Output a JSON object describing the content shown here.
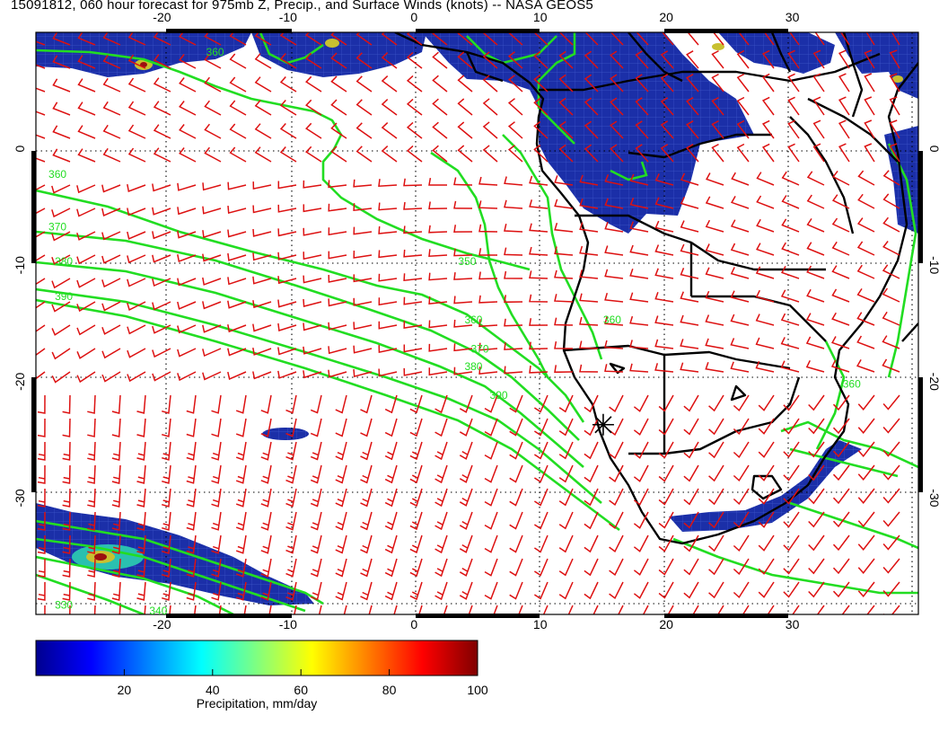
{
  "title": "15091812, 060 hour forecast for 975mb Z, Precip., and Surface Winds (knots) -- NASA GEOS5",
  "map": {
    "lon_range": [
      -30,
      40
    ],
    "lat_range": [
      -40,
      10
    ],
    "lon_ticks": [
      "-20",
      "-10",
      "0",
      "10",
      "20",
      "30"
    ],
    "lat_ticks": [
      "0",
      "-10",
      "-20",
      "-30"
    ],
    "contour_color": "#22dd22",
    "wind_barb_color": "#dd1111",
    "border_color": "#000000",
    "contour_labels": [
      {
        "text": "360",
        "lon": -16.5,
        "lat": 8
      },
      {
        "text": "360",
        "lon": -29,
        "lat": -2.5
      },
      {
        "text": "370",
        "lon": -29,
        "lat": -7
      },
      {
        "text": "380",
        "lon": -28.5,
        "lat": -10
      },
      {
        "text": "390",
        "lon": -28.5,
        "lat": -13
      },
      {
        "text": "350",
        "lon": 3.5,
        "lat": -10
      },
      {
        "text": "360",
        "lon": 4,
        "lat": -15
      },
      {
        "text": "370",
        "lon": 4.5,
        "lat": -17.5
      },
      {
        "text": "380",
        "lon": 4,
        "lat": -19
      },
      {
        "text": "390",
        "lon": 6,
        "lat": -21.5
      },
      {
        "text": "360",
        "lon": 15,
        "lat": -15
      },
      {
        "text": "360",
        "lon": 34,
        "lat": -20.5
      },
      {
        "text": "330",
        "lon": -28.5,
        "lat": -39.5
      },
      {
        "text": "340",
        "lon": -21,
        "lat": -40
      }
    ],
    "marker": {
      "lon": 15,
      "lat": -23.7,
      "name": "asterisk"
    }
  },
  "colorbar": {
    "label": "Precipitation, mm/day",
    "ticks": [
      "20",
      "40",
      "60",
      "80",
      "100"
    ],
    "range": [
      0,
      100
    ],
    "colors": [
      "#00008f",
      "#0000ff",
      "#0080ff",
      "#00ffff",
      "#80ff80",
      "#ffff00",
      "#ff8000",
      "#ff0000",
      "#800000"
    ]
  }
}
